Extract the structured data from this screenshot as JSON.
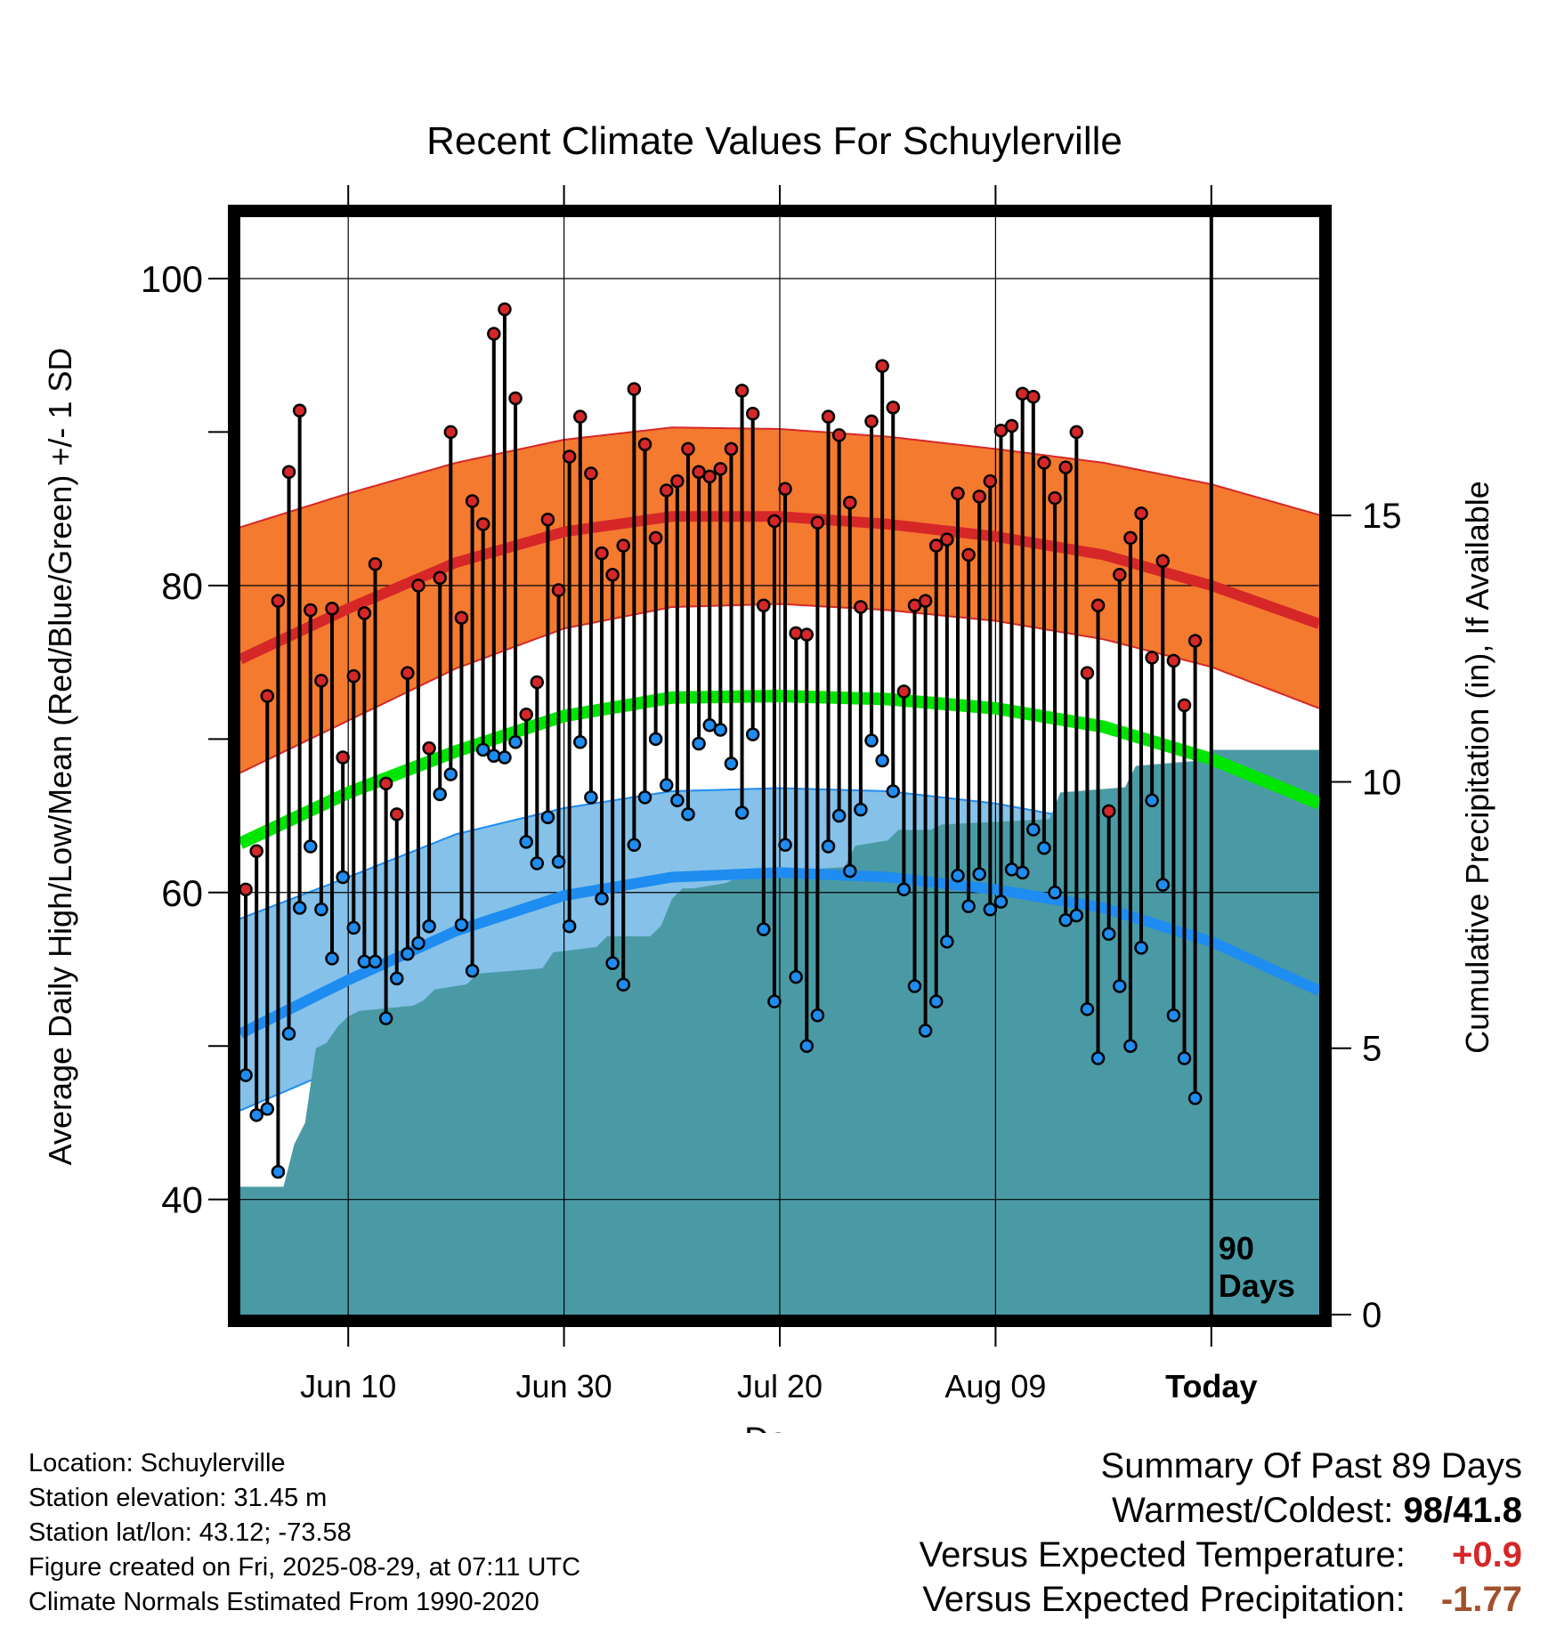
{
  "chart_data": {
    "type": "line",
    "title": "Recent Climate Values For Schuylerville",
    "xlabel": "Day",
    "ylabel": "Average Daily High/Low/Mean (Red/Blue/Green) +/- 1 SD",
    "y2label": "Cumulative Precipitation (in), If Available",
    "ylim": [
      32.5,
      104
    ],
    "y2lim": [
      0,
      20.6
    ],
    "y_ticks": [
      40,
      60,
      80,
      100
    ],
    "y2_ticks": [
      0,
      5,
      10,
      15
    ],
    "x_ticks": [
      {
        "day": 10,
        "label": "Jun 10"
      },
      {
        "day": 30,
        "label": "Jun 30"
      },
      {
        "day": 50,
        "label": "Jul 20"
      },
      {
        "day": 70,
        "label": "Aug 09"
      },
      {
        "day": 90,
        "label": "Today"
      }
    ],
    "today_label": "90 Days",
    "grid": true,
    "colors": {
      "high": "#d62728",
      "high_band": "#f47a30",
      "low": "#1e8cf0",
      "low_band": "#85c1e9",
      "mean": "#00e600",
      "precip": "#4a9aa5",
      "obs_high_dot": "#d62728",
      "obs_low_dot": "#1e8cf0"
    },
    "normals": {
      "days": [
        0,
        10,
        20,
        30,
        40,
        50,
        60,
        70,
        80,
        90,
        100
      ],
      "high": [
        75.2,
        78.5,
        81.5,
        83.5,
        84.5,
        84.5,
        84.0,
        83.2,
        82.0,
        80.0,
        77.5
      ],
      "high_upper": [
        83.8,
        86.0,
        88.0,
        89.5,
        90.3,
        90.2,
        89.7,
        88.9,
        88.0,
        86.6,
        84.6
      ],
      "high_lower": [
        67.8,
        71.2,
        74.6,
        77.2,
        78.6,
        78.8,
        78.4,
        77.7,
        76.5,
        74.7,
        72.0
      ],
      "mean": [
        63.2,
        66.5,
        69.2,
        71.5,
        72.7,
        72.8,
        72.6,
        72.0,
        70.8,
        68.7,
        65.8
      ],
      "low": [
        50.8,
        54.3,
        57.5,
        59.8,
        61.0,
        61.3,
        61.0,
        60.2,
        59.0,
        56.8,
        53.6
      ],
      "low_upper": [
        58.3,
        61.0,
        63.8,
        65.5,
        66.6,
        66.8,
        66.6,
        65.8,
        64.5,
        63.0,
        61.1
      ],
      "low_lower": [
        45.8,
        48.8,
        52.0,
        54.3,
        55.5,
        55.7,
        55.4,
        54.6,
        53.3,
        51.0,
        47.8
      ]
    },
    "observed": {
      "start_day": 0,
      "high": [
        60.2,
        62.7,
        72.8,
        79.0,
        87.4,
        91.4,
        78.4,
        73.8,
        78.5,
        68.8,
        74.1,
        78.2,
        81.4,
        67.1,
        65.1,
        74.3,
        80.0,
        69.4,
        80.5,
        90.0,
        77.9,
        85.5,
        84.0,
        96.4,
        98.0,
        92.2,
        71.6,
        73.7,
        84.3,
        79.7,
        88.4,
        91.0,
        87.3,
        82.1,
        80.7,
        82.6,
        92.8,
        89.2,
        83.1,
        86.2,
        86.8,
        88.9,
        87.4,
        87.1,
        87.6,
        88.9,
        92.7,
        91.2,
        78.7,
        84.2,
        86.3,
        76.9,
        76.8,
        84.1,
        91.0,
        89.8,
        85.4,
        78.6,
        90.7,
        94.3,
        91.6,
        73.1,
        78.7,
        79.0,
        82.6,
        83.0,
        86.0,
        82.0,
        85.8,
        86.8,
        90.1,
        90.4,
        92.5,
        92.3,
        88.0,
        85.7,
        87.7,
        90.0,
        74.3,
        78.7,
        65.3,
        80.7,
        83.1,
        84.7,
        75.3,
        81.6,
        75.1,
        72.2,
        76.4
      ],
      "low": [
        48.1,
        45.5,
        45.9,
        41.8,
        50.8,
        59.0,
        63.0,
        58.9,
        55.7,
        61.0,
        57.7,
        55.5,
        55.5,
        51.8,
        54.4,
        56.0,
        56.7,
        57.8,
        66.4,
        67.7,
        57.9,
        54.9,
        69.3,
        68.9,
        68.8,
        69.8,
        63.3,
        61.9,
        64.9,
        62.0,
        57.8,
        69.8,
        66.2,
        59.6,
        55.4,
        54.0,
        63.1,
        66.2,
        70.0,
        67.0,
        66.0,
        65.1,
        69.7,
        70.9,
        70.6,
        68.4,
        65.2,
        70.3,
        57.6,
        52.9,
        63.1,
        54.5,
        50.0,
        52.0,
        63.0,
        65.0,
        61.4,
        65.4,
        69.9,
        68.6,
        66.6,
        60.2,
        53.9,
        51.0,
        52.9,
        56.8,
        61.1,
        59.1,
        61.2,
        58.9,
        59.4,
        61.5,
        61.3,
        64.1,
        62.9,
        60.0,
        58.2,
        58.5,
        52.4,
        49.2,
        57.3,
        53.9,
        50.0,
        56.4,
        66.0,
        60.5,
        52.0,
        49.2,
        46.6
      ]
    },
    "precipitation": {
      "days": [
        0,
        4,
        5,
        6,
        7,
        8,
        9,
        10,
        11,
        16,
        17,
        18,
        21,
        22,
        28,
        29,
        33,
        34,
        38,
        39,
        40,
        41,
        42,
        45,
        46,
        47,
        48,
        56,
        57,
        60,
        61,
        64,
        65,
        75,
        76,
        82,
        83,
        89,
        90,
        100
      ],
      "values": [
        2.4,
        2.4,
        3.2,
        3.6,
        5.0,
        5.1,
        5.4,
        5.6,
        5.7,
        5.8,
        5.9,
        6.1,
        6.2,
        6.4,
        6.5,
        6.8,
        6.9,
        7.1,
        7.1,
        7.3,
        7.8,
        8.0,
        8.0,
        8.1,
        8.2,
        8.3,
        8.3,
        8.4,
        8.8,
        8.9,
        9.1,
        9.1,
        9.2,
        9.3,
        9.8,
        9.9,
        10.3,
        10.4,
        10.6,
        10.6
      ]
    }
  },
  "info": {
    "location": "Location: Schuylerville",
    "elevation": "Station elevation: 31.45 m",
    "latlon": "Station lat/lon: 43.12; -73.58",
    "created": "Figure created on Fri, 2025-08-29, at 07:11 UTC",
    "normals": "Climate Normals Estimated From 1990-2020"
  },
  "summary": {
    "title": "Summary Of Past 89 Days",
    "warmest_label": "Warmest/Coldest:",
    "warmest_high": "98",
    "warmest_sep": "/",
    "warmest_low": "41.8",
    "temp_label": "Versus Expected Temperature:",
    "temp_value": "+0.9",
    "temp_color": "#d62728",
    "precip_label": "Versus Expected Precipitation:",
    "precip_value": "-1.77",
    "precip_color": "#a0522d"
  }
}
